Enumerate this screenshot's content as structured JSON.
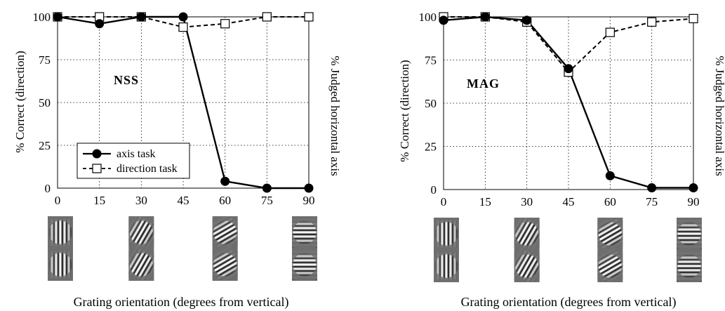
{
  "chart_data": [
    {
      "type": "line",
      "panel_label": "NSS",
      "ylabel_left": "% Correct (direction)",
      "ylabel_right": "% Judged horizontal axis",
      "xlabel": "Grating orientation (degrees from vertical)",
      "xlim": [
        0,
        90
      ],
      "ylim": [
        0,
        100
      ],
      "x_ticks": [
        "0",
        "15",
        "30",
        "45",
        "60",
        "75",
        "90"
      ],
      "y_ticks": [
        "0",
        "25",
        "50",
        "75",
        "100"
      ],
      "grid": true,
      "legend": {
        "position": "bottom-left",
        "entries": [
          "axis task",
          "direction task"
        ]
      },
      "series": [
        {
          "name": "axis task",
          "style": "solid",
          "marker": "filled-circle",
          "x": [
            0,
            15,
            30,
            45,
            60,
            75,
            90
          ],
          "y": [
            100,
            96,
            100,
            100,
            4,
            0,
            0
          ]
        },
        {
          "name": "direction task",
          "style": "dashed",
          "marker": "open-square",
          "x": [
            0,
            15,
            30,
            45,
            60,
            75,
            90
          ],
          "y": [
            100,
            100,
            100,
            94,
            96,
            100,
            100
          ]
        }
      ],
      "stimuli_orientations": [
        0,
        30,
        60,
        90
      ]
    },
    {
      "type": "line",
      "panel_label": "MAG",
      "ylabel_left": "% Correct (direction)",
      "ylabel_right": "% Judged horizontal axis",
      "xlabel": "Grating orientation (degrees from vertical)",
      "xlim": [
        0,
        90
      ],
      "ylim": [
        0,
        100
      ],
      "x_ticks": [
        "0",
        "15",
        "30",
        "45",
        "60",
        "75",
        "90"
      ],
      "y_ticks": [
        "0",
        "25",
        "50",
        "75",
        "100"
      ],
      "grid": true,
      "series": [
        {
          "name": "axis task",
          "style": "solid",
          "marker": "filled-circle",
          "x": [
            0,
            15,
            30,
            45,
            60,
            75,
            90
          ],
          "y": [
            98,
            100,
            98,
            70,
            8,
            1,
            1
          ]
        },
        {
          "name": "direction task",
          "style": "dashed",
          "marker": "open-square",
          "x": [
            0,
            15,
            30,
            45,
            60,
            75,
            90
          ],
          "y": [
            100,
            100,
            97,
            68,
            91,
            97,
            99
          ]
        }
      ],
      "stimuli_orientations": [
        0,
        30,
        60,
        90
      ]
    }
  ]
}
